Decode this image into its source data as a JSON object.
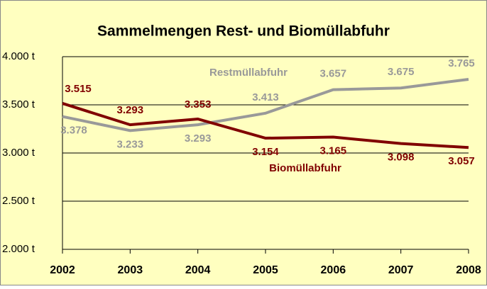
{
  "chart_data": {
    "type": "line",
    "title": "Sammelmengen Rest- und Biomüllabfuhr",
    "categories": [
      "2002",
      "2003",
      "2004",
      "2005",
      "2006",
      "2007",
      "2008"
    ],
    "series": [
      {
        "name": "Restmüllabfuhr",
        "color": "#999999",
        "values": [
          3378,
          3233,
          3293,
          3413,
          3657,
          3675,
          3765
        ],
        "value_labels": [
          "3.378",
          "3.233",
          "3.293",
          "3.413",
          "3.657",
          "3.675",
          "3.765"
        ]
      },
      {
        "name": "Biomüllabfuhr",
        "color": "#800000",
        "values": [
          3515,
          3293,
          3353,
          3154,
          3165,
          3098,
          3057
        ],
        "value_labels": [
          "3.515",
          "3.293",
          "3.353",
          "3.154",
          "3.165",
          "3.098",
          "3.057"
        ]
      }
    ],
    "ylim": [
      2000,
      4000
    ],
    "yticks": [
      {
        "value": 2000,
        "label": "2.000 t"
      },
      {
        "value": 2500,
        "label": "2.500 t"
      },
      {
        "value": 3000,
        "label": "3.000 t"
      },
      {
        "value": 3500,
        "label": "3.500 t"
      },
      {
        "value": 4000,
        "label": "4.000 t"
      }
    ],
    "grid": true
  }
}
